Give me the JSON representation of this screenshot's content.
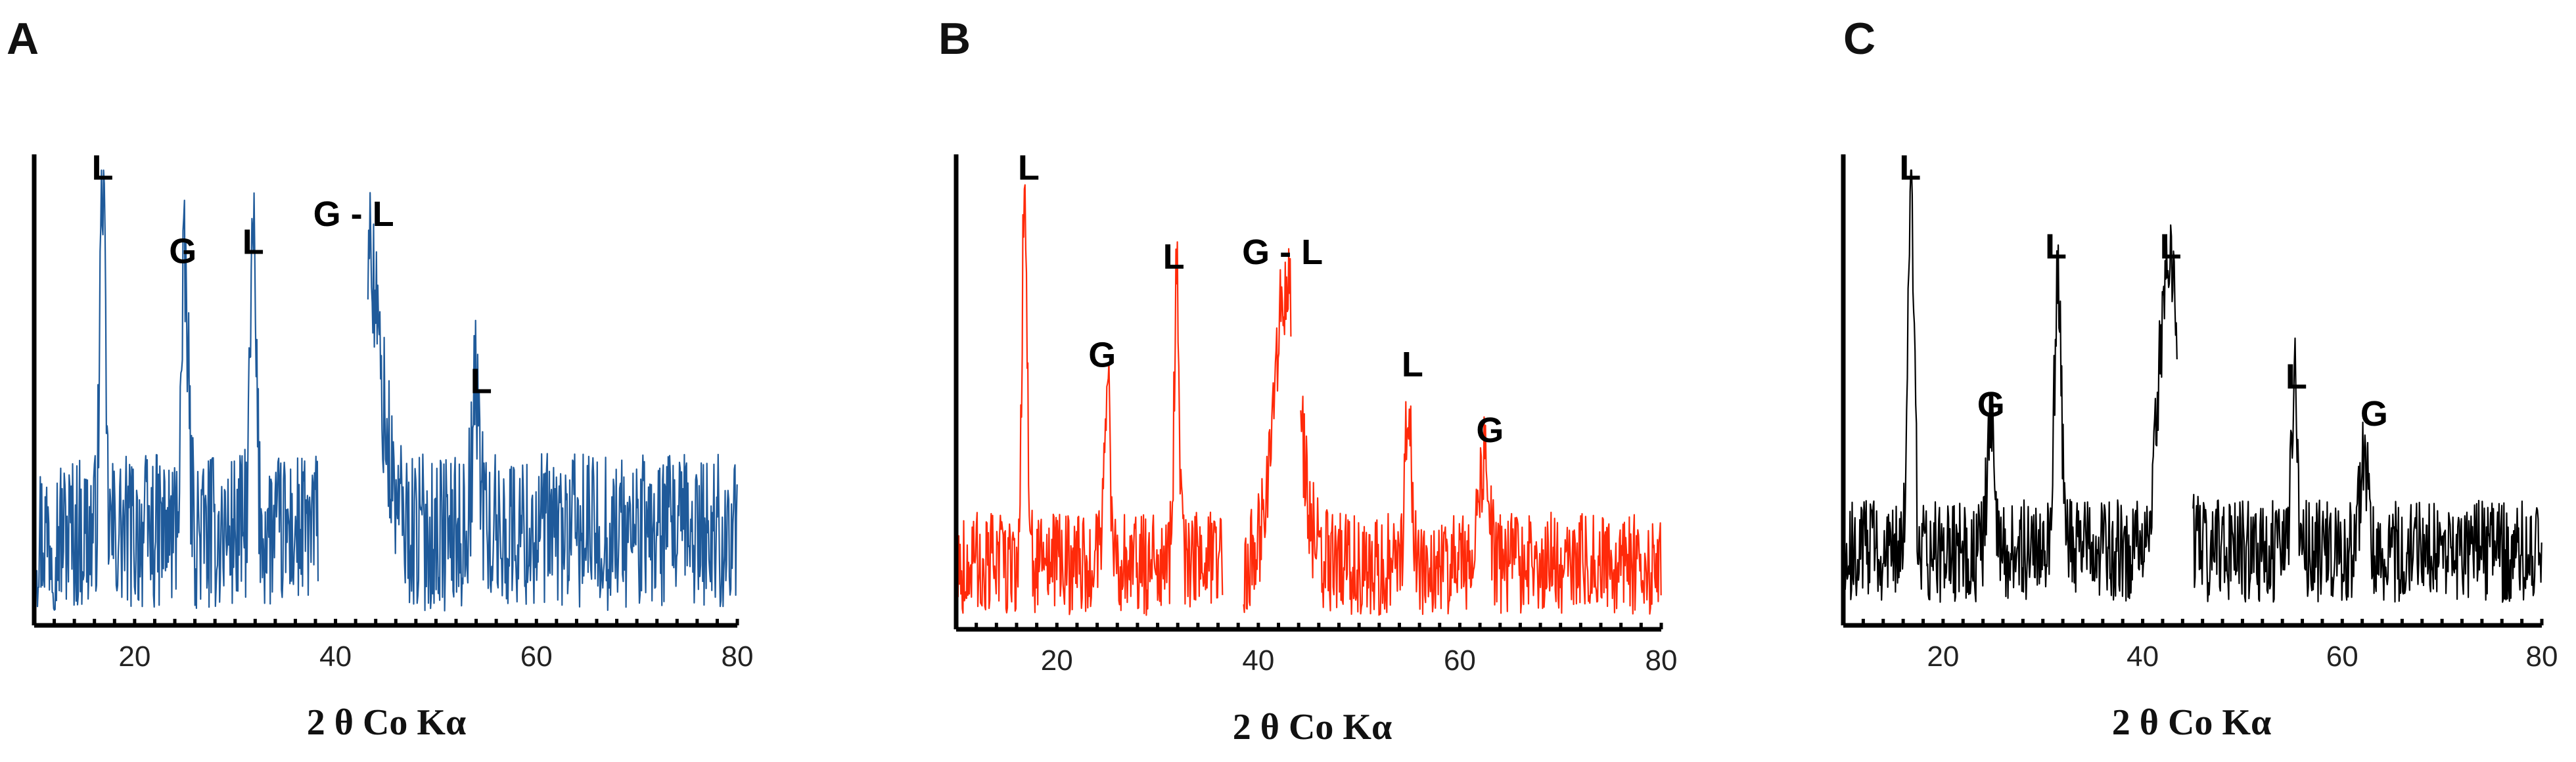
{
  "chart_data": [
    {
      "type": "line",
      "panel": "A",
      "color": "#1f5a9a",
      "xlabel": "2 θ Co Kα",
      "ylabel": "",
      "xlim": [
        10,
        80
      ],
      "ylim": [
        0,
        100
      ],
      "xticks": [
        20,
        40,
        60,
        80
      ],
      "baseline": 20,
      "noise": 17,
      "peaks": [
        {
          "x": 16.8,
          "h": 80,
          "w": 0.25
        },
        {
          "x": 25.0,
          "h": 55,
          "w": 0.35
        },
        {
          "x": 31.8,
          "h": 62,
          "w": 0.3
        },
        {
          "x": 42.6,
          "h": 70,
          "w": 1.6
        },
        {
          "x": 54.0,
          "h": 30,
          "w": 0.4
        }
      ],
      "gaps": [
        [
          38.3,
          43.2
        ]
      ],
      "annotations": [
        {
          "text": "L",
          "x": 16.8,
          "y": 96
        },
        {
          "text": "G",
          "x": 24.8,
          "y": 78
        },
        {
          "text": "L",
          "x": 31.8,
          "y": 80
        },
        {
          "text": "G - L",
          "x": 41.8,
          "y": 86
        },
        {
          "text": "L",
          "x": 54.5,
          "y": 50
        }
      ]
    },
    {
      "type": "line",
      "panel": "B",
      "color": "#ff2a0a",
      "xlabel": "2 θ Co Kα",
      "ylabel": "",
      "xlim": [
        10,
        80
      ],
      "ylim": [
        0,
        100
      ],
      "xticks": [
        20,
        40,
        60,
        80
      ],
      "baseline": 14,
      "noise": 11,
      "peaks": [
        {
          "x": 16.8,
          "h": 82,
          "w": 0.25
        },
        {
          "x": 25.0,
          "h": 40,
          "w": 0.3
        },
        {
          "x": 31.9,
          "h": 62,
          "w": 0.25
        },
        {
          "x": 42.8,
          "h": 58,
          "w": 1.3
        },
        {
          "x": 54.9,
          "h": 35,
          "w": 0.3
        },
        {
          "x": 62.3,
          "h": 22,
          "w": 0.5
        }
      ],
      "gaps": [
        [
          36.5,
          38.5
        ],
        [
          43.3,
          44.2
        ]
      ],
      "annotations": [
        {
          "text": "L",
          "x": 17.2,
          "y": 96
        },
        {
          "text": "G",
          "x": 24.5,
          "y": 56
        },
        {
          "text": "L",
          "x": 31.6,
          "y": 77
        },
        {
          "text": "G - L",
          "x": 42.4,
          "y": 78
        },
        {
          "text": "L",
          "x": 55.3,
          "y": 54
        },
        {
          "text": "G",
          "x": 63.0,
          "y": 40
        }
      ]
    },
    {
      "type": "line",
      "panel": "C",
      "color": "#000000",
      "xlabel": "2 θ Co Kα",
      "ylabel": "",
      "xlim": [
        10,
        80
      ],
      "ylim": [
        0,
        100
      ],
      "xticks": [
        20,
        40,
        60,
        80
      ],
      "baseline": 16,
      "noise": 11,
      "peaks": [
        {
          "x": 16.8,
          "h": 80,
          "w": 0.3
        },
        {
          "x": 24.8,
          "h": 28,
          "w": 0.4
        },
        {
          "x": 31.5,
          "h": 58,
          "w": 0.35
        },
        {
          "x": 42.7,
          "h": 65,
          "w": 1.0
        },
        {
          "x": 55.2,
          "h": 38,
          "w": 0.3
        },
        {
          "x": 62.2,
          "h": 22,
          "w": 0.4
        }
      ],
      "gaps": [
        [
          43.5,
          45.0
        ]
      ],
      "annotations": [
        {
          "text": "L",
          "x": 16.7,
          "y": 96
        },
        {
          "text": "G",
          "x": 24.8,
          "y": 45
        },
        {
          "text": "L",
          "x": 31.3,
          "y": 79
        },
        {
          "text": "L",
          "x": 42.8,
          "y": 79
        },
        {
          "text": "L",
          "x": 55.4,
          "y": 51
        },
        {
          "text": "G",
          "x": 63.2,
          "y": 43
        }
      ]
    }
  ]
}
